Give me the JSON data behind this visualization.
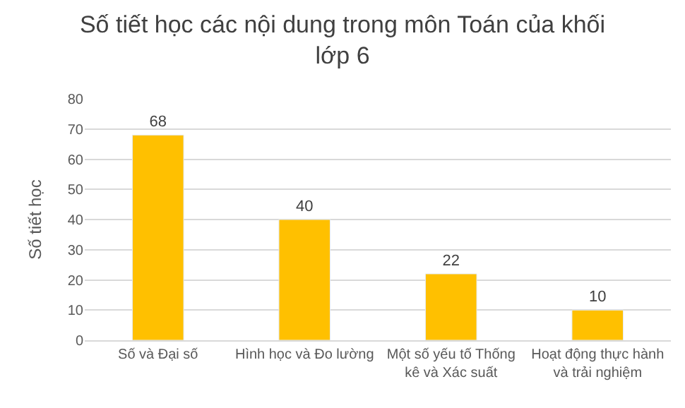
{
  "chart_data": {
    "type": "bar",
    "title": "Số tiết học các nội dung trong môn Toán của khối lớp 6",
    "ylabel": "Số tiết học",
    "categories": [
      "Số và Đại số",
      "Hình học và Đo lường",
      "Một số yếu tố Thống kê và Xác suất",
      "Hoạt động thực hành và trải nghiệm"
    ],
    "values": [
      68,
      40,
      22,
      10
    ],
    "color": "#ffc000",
    "ylim": [
      0,
      80
    ],
    "yticks": [
      0,
      10,
      20,
      30,
      40,
      50,
      60,
      70,
      80
    ],
    "grid": "y",
    "data_labels": true,
    "legend": false
  }
}
